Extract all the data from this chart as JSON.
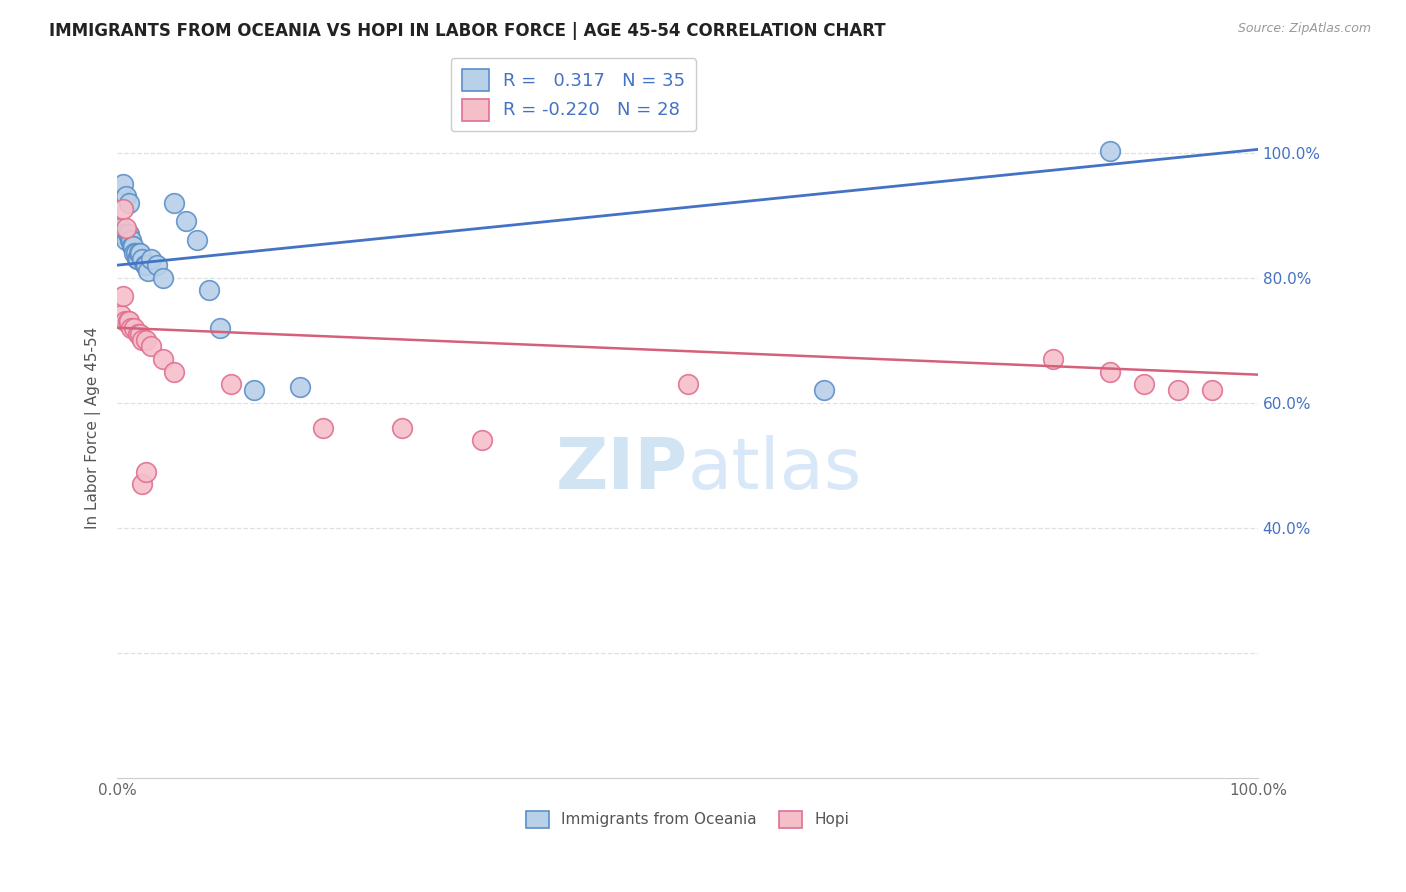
{
  "title": "IMMIGRANTS FROM OCEANIA VS HOPI IN LABOR FORCE | AGE 45-54 CORRELATION CHART",
  "source": "Source: ZipAtlas.com",
  "ylabel": "In Labor Force | Age 45-54",
  "xlim": [
    0.0,
    1.0
  ],
  "ylim": [
    0.0,
    1.12
  ],
  "x_ticks": [
    0.0,
    0.1,
    0.2,
    0.3,
    0.4,
    0.5,
    0.6,
    0.7,
    0.8,
    0.9,
    1.0
  ],
  "x_tick_labels": [
    "0.0%",
    "",
    "",
    "",
    "",
    "",
    "",
    "",
    "",
    "",
    "100.0%"
  ],
  "right_y_ticks": [
    0.4,
    0.6,
    0.8,
    1.0
  ],
  "right_y_tick_labels": [
    "40.0%",
    "60.0%",
    "80.0%",
    "100.0%"
  ],
  "R_blue": 0.317,
  "N_blue": 35,
  "R_pink": -0.22,
  "N_pink": 28,
  "blue_fill_color": "#b8d0e8",
  "blue_edge_color": "#5b8fc9",
  "pink_fill_color": "#f5bfca",
  "pink_edge_color": "#e07090",
  "blue_line_color": "#4472c4",
  "pink_line_color": "#d4607a",
  "legend_text_color": "#4472c4",
  "watermark_color": "#d0e4f4",
  "grid_color": "#e0e0e0",
  "blue_line_start_y": 0.82,
  "blue_line_end_y": 1.005,
  "pink_line_start_y": 0.72,
  "pink_line_end_y": 0.645,
  "blue_scatter_x": [
    0.002,
    0.005,
    0.007,
    0.008,
    0.009,
    0.01,
    0.011,
    0.012,
    0.013,
    0.014,
    0.015,
    0.016,
    0.017,
    0.018,
    0.019,
    0.02,
    0.022,
    0.024,
    0.025,
    0.027,
    0.03,
    0.035,
    0.04,
    0.05,
    0.06,
    0.07,
    0.08,
    0.09,
    0.12,
    0.16,
    0.62,
    0.87,
    0.005,
    0.008,
    0.01
  ],
  "blue_scatter_y": [
    0.88,
    0.87,
    0.87,
    0.86,
    0.87,
    0.87,
    0.86,
    0.86,
    0.85,
    0.85,
    0.84,
    0.84,
    0.83,
    0.83,
    0.84,
    0.84,
    0.83,
    0.82,
    0.82,
    0.81,
    0.83,
    0.82,
    0.8,
    0.92,
    0.89,
    0.86,
    0.78,
    0.72,
    0.62,
    0.625,
    0.62,
    1.003,
    0.95,
    0.93,
    0.92
  ],
  "pink_scatter_x": [
    0.003,
    0.005,
    0.007,
    0.009,
    0.01,
    0.012,
    0.015,
    0.018,
    0.02,
    0.022,
    0.025,
    0.03,
    0.04,
    0.05,
    0.1,
    0.18,
    0.25,
    0.32,
    0.5,
    0.82,
    0.87,
    0.9,
    0.93,
    0.96,
    0.005,
    0.008,
    0.022,
    0.025
  ],
  "pink_scatter_y": [
    0.74,
    0.77,
    0.73,
    0.73,
    0.73,
    0.72,
    0.72,
    0.71,
    0.71,
    0.7,
    0.7,
    0.69,
    0.67,
    0.65,
    0.63,
    0.56,
    0.56,
    0.54,
    0.63,
    0.67,
    0.65,
    0.63,
    0.62,
    0.62,
    0.91,
    0.88,
    0.47,
    0.49
  ]
}
